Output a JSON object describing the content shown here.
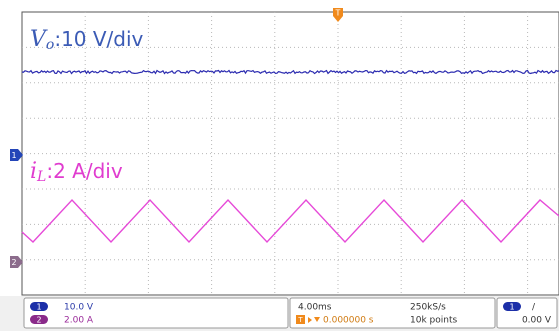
{
  "screen": {
    "trace_labels": [
      {
        "symbol": "V",
        "subscript": "o",
        "scale": ":10 V/div"
      },
      {
        "symbol": "i",
        "subscript": "L",
        "scale": ":2 A/div"
      }
    ],
    "channel_markers": [
      "1",
      "2"
    ],
    "trigger_marker": "T"
  },
  "readout": {
    "channels": [
      {
        "badge": "1",
        "scale": "10.0 V"
      },
      {
        "badge": "2",
        "scale": "2.00 A"
      }
    ],
    "timebase": "4.00ms",
    "sample_rate": "250kS/s",
    "trigger_position_badge": "T",
    "trigger_position": "0.000000 s",
    "record_length": "10k points",
    "trigger": {
      "badge": "1",
      "slope": "/",
      "level": "0.00 V"
    }
  }
}
